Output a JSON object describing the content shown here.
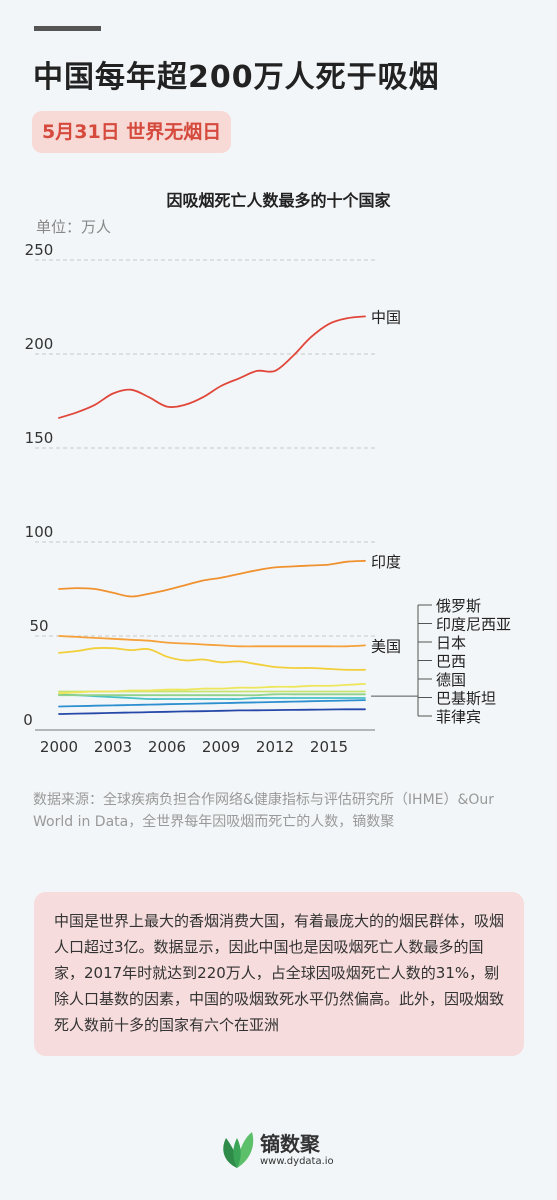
{
  "header": {
    "title": "中国每年超200万人死于吸烟",
    "badge": "5月31日 世界无烟日"
  },
  "chart_data": {
    "type": "line",
    "title": "因吸烟死亡人数最多的十个国家",
    "unit_label": "单位：万人",
    "x": [
      2000,
      2001,
      2002,
      2003,
      2004,
      2005,
      2006,
      2007,
      2008,
      2009,
      2010,
      2011,
      2012,
      2013,
      2014,
      2015,
      2016,
      2017
    ],
    "xticks": [
      2000,
      2003,
      2006,
      2009,
      2012,
      2015
    ],
    "yticks": [
      0,
      50,
      100,
      150,
      200,
      250
    ],
    "ylim": [
      0,
      250
    ],
    "xlim": [
      2000,
      2017.5
    ],
    "grid": "horizontal-dashed",
    "series": [
      {
        "name": "中国",
        "color": "#e0473a",
        "values": [
          166,
          169,
          173,
          179,
          181,
          177,
          172,
          173,
          177,
          183,
          187,
          191,
          191,
          199,
          209,
          216,
          219,
          220
        ]
      },
      {
        "name": "印度",
        "color": "#f0912f",
        "values": [
          75,
          75.5,
          75,
          73,
          71,
          72.5,
          74.5,
          77,
          79.5,
          81,
          83,
          85,
          86.5,
          87,
          87.5,
          88,
          89.5,
          90
        ]
      },
      {
        "name": "美国",
        "color": "#f5a13b",
        "values": [
          50,
          49.5,
          49,
          48.5,
          48,
          47.5,
          46.5,
          46,
          45.5,
          45,
          44.5,
          44.5,
          44.5,
          44.5,
          44.5,
          44.5,
          44.5,
          45
        ]
      },
      {
        "name": "俄罗斯",
        "color": "#f2cf3a",
        "values": [
          41,
          42,
          43.5,
          43.5,
          42.5,
          43,
          39,
          37,
          37.5,
          36,
          36.5,
          35,
          33.5,
          33,
          33,
          32.5,
          32,
          32
        ]
      },
      {
        "name": "印度尼西亚",
        "color": "#ede65d",
        "values": [
          19.5,
          20,
          20.5,
          20.5,
          21,
          21,
          21.5,
          21.5,
          22,
          22,
          22.5,
          22.5,
          23,
          23,
          23.5,
          23.5,
          24,
          24.5
        ]
      },
      {
        "name": "日本",
        "color": "#c9e36f",
        "values": [
          20.5,
          20.5,
          20.5,
          20.5,
          20.5,
          20.5,
          20.5,
          20.5,
          20.5,
          20.5,
          20.5,
          20.5,
          20.5,
          20.5,
          20.5,
          20.5,
          20.5,
          20.5
        ]
      },
      {
        "name": "巴西",
        "color": "#8fd18a",
        "values": [
          18.5,
          18.5,
          18.5,
          18.5,
          18.5,
          18.5,
          18.5,
          18.5,
          18.5,
          18.5,
          18.5,
          18.5,
          19,
          19,
          19,
          19,
          19,
          19
        ]
      },
      {
        "name": "德国",
        "color": "#48c1c5",
        "values": [
          19,
          18.5,
          18,
          17.5,
          17,
          16.5,
          16.5,
          16.5,
          16.5,
          16.5,
          16.5,
          17,
          17,
          17,
          17,
          17,
          17,
          17
        ]
      },
      {
        "name": "巴基斯坦",
        "color": "#2c8fcf",
        "values": [
          12.5,
          12.7,
          12.9,
          13.1,
          13.3,
          13.5,
          13.7,
          13.9,
          14.1,
          14.3,
          14.5,
          14.7,
          14.9,
          15.1,
          15.3,
          15.5,
          15.7,
          15.9
        ]
      },
      {
        "name": "菲律宾",
        "color": "#2648a8",
        "values": [
          8.5,
          8.7,
          8.9,
          9.1,
          9.3,
          9.5,
          9.7,
          9.9,
          10,
          10.2,
          10.4,
          10.5,
          10.6,
          10.7,
          10.8,
          10.9,
          11,
          11
        ]
      }
    ],
    "label_groups": {
      "direct": [
        "中国",
        "印度",
        "美国"
      ],
      "bracket": [
        "俄罗斯",
        "印度尼西亚",
        "日本",
        "巴西",
        "德国",
        "巴基斯坦",
        "菲律宾"
      ]
    }
  },
  "source": "数据来源：全球疾病负担合作网络&健康指标与评估研究所（IHME）&Our World in Data，全世界每年因吸烟而死亡的人数，镝数聚",
  "description": "中国是世界上最大的香烟消费大国，有着最庞大的的烟民群体，吸烟人口超过3亿。数据显示，因此中国也是因吸烟死亡人数最多的国家，2017年时就达到220万人，占全球因吸烟死亡人数的31%，剔除人口基数的因素，中国的吸烟致死水平仍然偏高。此外，因吸烟致死人数前十多的国家有六个在亚洲",
  "footer": {
    "brand": "镝数聚",
    "url": "www.dydata.io",
    "logo_icon": "leaf-logo-icon",
    "colors": {
      "leaf_dark": "#2e8b4a",
      "leaf_light": "#5cbf6a"
    }
  }
}
